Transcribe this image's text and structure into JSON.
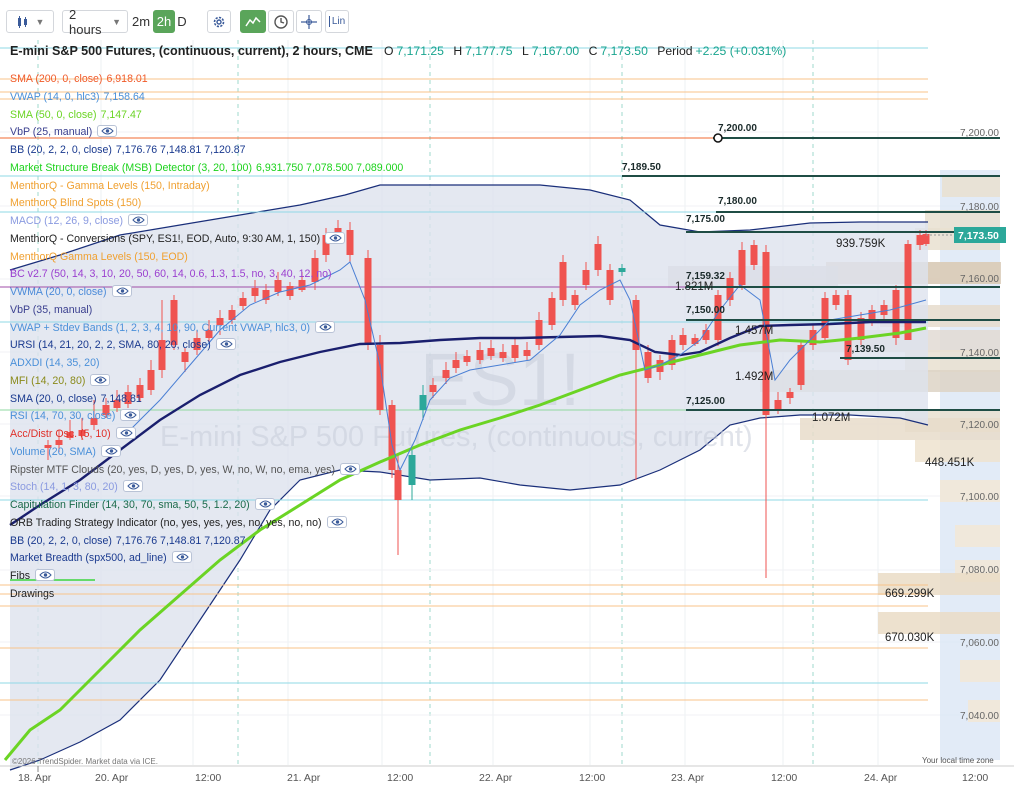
{
  "toolbar": {
    "timeframe": "2 hours",
    "intervals": [
      "2m",
      "2h",
      "D"
    ],
    "active_interval": "2h",
    "lin_label": "Lin",
    "icons": [
      "candles-icon",
      "settings-gear-icon",
      "chart-type-area-icon",
      "clock-icon",
      "crosshair-icon",
      "lin-scale-icon"
    ]
  },
  "header": {
    "title": "E-mini S&P 500 Futures, (continuous, current), 2 hours, CME",
    "open_label": "O",
    "open": "7,171.25",
    "high_label": "H",
    "high": "7,177.75",
    "low_label": "L",
    "low": "7,167.00",
    "close_label": "C",
    "close": "7,173.50",
    "period_label": "Period",
    "period_change": "+2.25 (+0.031%)"
  },
  "watermark": {
    "symbol": "ES1!",
    "name": "E-mini S&P 500 Futures, (continuous, current)"
  },
  "indicators": [
    {
      "name": "SMA (200, 0, close)",
      "value": "6,918.01",
      "color": "#f05a28",
      "eye": false
    },
    {
      "name": "VWAP (14, 0, hlc3)",
      "value": "7,158.64",
      "color": "#4a90d9",
      "eye": false
    },
    {
      "name": "SMA (50, 0, close)",
      "value": "7,147.47",
      "color": "#6bd424",
      "eye": false
    },
    {
      "name": "VbP (25, manual)",
      "value": "",
      "color": "#3a3f8f",
      "eye": true
    },
    {
      "name": "BB (20, 2, 2, 0, close)",
      "value": "7,176.76  7,148.81  7,120.87",
      "color": "#1a3a8f",
      "eye": false
    },
    {
      "name": "Market Structure Break (MSB) Detector (3, 20, 100)",
      "value": "6,931.750  7,078.500  7,089.000",
      "color": "#1bd21b",
      "eye": false
    },
    {
      "name": "MenthorQ - Gamma Levels (150, Intraday)",
      "value": "",
      "color": "#f0a030",
      "eye": false
    },
    {
      "name": "MenthorQ Blind Spots (150)",
      "value": "",
      "color": "#f0a030",
      "eye": false
    },
    {
      "name": "MACD (12, 26, 9, close)",
      "value": "",
      "color": "#8a9ae0",
      "eye": true
    },
    {
      "name": "MenthorQ - Conversions (SPY, ES1!, EOD, Auto, 9:30 AM, 1, 150)",
      "value": "",
      "color": "#222222",
      "eye": true
    },
    {
      "name": "MenthorQ Gamma Levels (150, EOD)",
      "value": "",
      "color": "#f0a030",
      "eye": false
    },
    {
      "name": "BC v2.7 (50, 14, 3, 10, 20, 50, 60, 14, 0.6, 1.3, 1.5, no, 3, 40, 12, no)",
      "value": "",
      "color": "#9a3fcf",
      "eye": false
    },
    {
      "name": "VWMA (20, 0, close)",
      "value": "",
      "color": "#4a8ad9",
      "eye": true
    },
    {
      "name": "VbP (35, manual)",
      "value": "",
      "color": "#3a3f8f",
      "eye": false
    },
    {
      "name": "VWAP + Stdev Bands (1, 2, 3, 4, 10, 90, Current VWAP, hlc3, 0)",
      "value": "",
      "color": "#4a90d9",
      "eye": true
    },
    {
      "name": "URSI (14, 21, 20, 2, 2, SMA, 80, 20, close)",
      "value": "",
      "color": "#1a3a8f",
      "eye": true
    },
    {
      "name": "ADXDI (14, 35, 20)",
      "value": "",
      "color": "#4a90d9",
      "eye": false
    },
    {
      "name": "MFI (14, 20, 80)",
      "value": "",
      "color": "#8a8a1a",
      "eye": true
    },
    {
      "name": "SMA (20, 0, close)",
      "value": "7,148.81",
      "color": "#1a3a8f",
      "eye": false
    },
    {
      "name": "RSI (14, 70, 30, close)",
      "value": "",
      "color": "#4a90d9",
      "eye": true
    },
    {
      "name": "Acc/Distr Osc. (5, 10)",
      "value": "",
      "color": "#e0302a",
      "eye": true
    },
    {
      "name": "Volume (20, SMA)",
      "value": "",
      "color": "#4a90d9",
      "eye": true
    },
    {
      "name": "Ripster MTF Clouds (20, yes, D, yes, D, yes, W, no, W, no, ema, yes)",
      "value": "",
      "color": "#555555",
      "eye": true
    },
    {
      "name": "Stoch (14, 1, 3, 80, 20)",
      "value": "",
      "color": "#8a9ae0",
      "eye": true
    },
    {
      "name": "Capitulation Finder (14, 30, 70, sma, 50, 5, 1.2, 20)",
      "value": "",
      "color": "#1a6a4a",
      "eye": true
    },
    {
      "name": "ORB Trading Strategy Indicator (no, yes, yes, yes, no, yes, no, no)",
      "value": "",
      "color": "#222222",
      "eye": true
    },
    {
      "name": "BB (20, 2, 2, 0, close)",
      "value": "7,176.76  7,148.81  7,120.87",
      "color": "#1a3a8f",
      "eye": false
    },
    {
      "name": "Market Breadth (spx500, ad_line)",
      "value": "",
      "color": "#1a3a8f",
      "eye": true
    },
    {
      "name": "Fibs",
      "value": "",
      "color": "#222222",
      "eye": true
    },
    {
      "name": "Drawings",
      "value": "",
      "color": "#222222",
      "eye": false
    }
  ],
  "price_axis": {
    "labels": [
      "7,200.00",
      "7,180.00",
      "7,160.00",
      "7,140.00",
      "7,120.00",
      "7,100.00",
      "7,080.00",
      "7,060.00",
      "7,040.00"
    ],
    "current_price": "7,173.50",
    "current_color": "#17a589"
  },
  "time_axis": {
    "labels": [
      "18. Apr",
      "20. Apr",
      "12:00",
      "21. Apr",
      "12:00",
      "22. Apr",
      "12:00",
      "23. Apr",
      "12:00",
      "24. Apr",
      "12:00"
    ]
  },
  "level_labels": [
    "7,200.00",
    "7,189.50",
    "7,180.00",
    "7,175.00",
    "7,159.32",
    "7,150.00",
    "7,139.50",
    "7,125.00"
  ],
  "volume_labels": [
    "939.759K",
    "1.821M",
    "1.457M",
    "1.492M",
    "1.072M",
    "448.451K",
    "669.299K",
    "670.030K"
  ],
  "footer": {
    "copyright": "©2026 TrendSpider. Market data via ICE.",
    "timezone": "Your local time zone"
  },
  "colors": {
    "up": "#2ca89a",
    "down": "#ef5350",
    "sma50": "#6bd424",
    "sma20": "#1a1f6e",
    "bb_fill": "#dde2ee",
    "level": "#1f4d45"
  }
}
